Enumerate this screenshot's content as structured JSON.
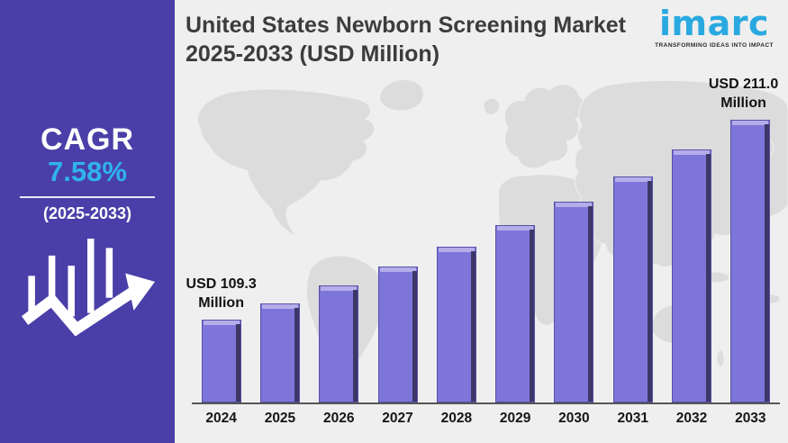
{
  "sidebar": {
    "cagr_label": "CAGR",
    "cagr_value": "7.58%",
    "cagr_period": "(2025-2033)",
    "bg_color": "#4a3fa8",
    "accent_color": "#2fb3ef",
    "icon": "growth-bars-arrow-icon"
  },
  "header": {
    "title_line1": "United States Newborn Screening Market",
    "title_line2": "2025-2033 (USD Million)"
  },
  "logo": {
    "brand": "imarc",
    "tagline": "TRANSFORMING IDEAS INTO IMPACT",
    "brand_color": "#29a9e0"
  },
  "chart_data": {
    "type": "bar",
    "title": "United States Newborn Screening Market 2025-2033 (USD Million)",
    "unit": "USD Million",
    "categories": [
      "2024",
      "2025",
      "2026",
      "2027",
      "2028",
      "2029",
      "2030",
      "2031",
      "2032",
      "2033"
    ],
    "values": [
      109.3,
      117.6,
      126.5,
      136.1,
      146.4,
      157.5,
      169.4,
      182.3,
      196.1,
      211.0
    ],
    "labeled_points": [
      {
        "category": "2024",
        "label_line1": "USD 109.3",
        "label_line2": "Million"
      },
      {
        "category": "2033",
        "label_line1": "USD 211.0",
        "label_line2": "Million"
      }
    ],
    "cagr": "7.58%",
    "cagr_period": "2025-2033",
    "bar_color": "#7e75da",
    "bar_top_color": "#b5adea",
    "bar_side_color": "#3d3768",
    "background_color": "#efefef",
    "map_color": "#dcdcdc",
    "x_axis_line_color": "#555555",
    "value_axis": "hidden",
    "grid": "off",
    "legend": "none"
  }
}
